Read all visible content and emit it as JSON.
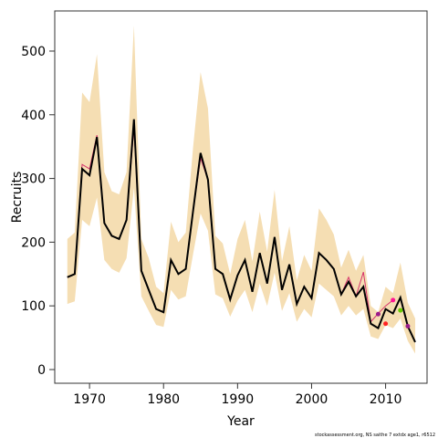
{
  "chart_data": {
    "type": "line",
    "xlabel": "Year",
    "ylabel": "Recruits",
    "footnote": "stockassessment.org, NS saithe 7 extdx age1, r6512",
    "x": [
      1967,
      1968,
      1969,
      1970,
      1971,
      1972,
      1973,
      1974,
      1975,
      1976,
      1977,
      1978,
      1979,
      1980,
      1981,
      1982,
      1983,
      1984,
      1985,
      1986,
      1987,
      1988,
      1989,
      1990,
      1991,
      1992,
      1993,
      1994,
      1995,
      1996,
      1997,
      1998,
      1999,
      2000,
      2001,
      2002,
      2003,
      2004,
      2005,
      2006,
      2007,
      2008,
      2009,
      2010,
      2011,
      2012,
      2013,
      2014
    ],
    "band": {
      "color": "#f5deb3",
      "upper": [
        205,
        215,
        435,
        420,
        495,
        310,
        280,
        275,
        310,
        540,
        205,
        175,
        130,
        120,
        232,
        200,
        215,
        350,
        467,
        410,
        210,
        198,
        150,
        205,
        235,
        170,
        248,
        185,
        282,
        170,
        225,
        140,
        180,
        155,
        253,
        235,
        212,
        160,
        188,
        155,
        180,
        100,
        90,
        130,
        120,
        168,
        105,
        80
      ],
      "lower": [
        103,
        107,
        235,
        225,
        270,
        172,
        158,
        152,
        175,
        285,
        115,
        92,
        70,
        67,
        125,
        110,
        115,
        182,
        245,
        218,
        118,
        112,
        83,
        108,
        125,
        90,
        135,
        100,
        152,
        92,
        120,
        75,
        95,
        82,
        135,
        125,
        115,
        85,
        100,
        85,
        95,
        52,
        48,
        70,
        65,
        80,
        45,
        25
      ]
    },
    "series": [
      {
        "color": "#d6336c",
        "width": 1,
        "values": [
          145,
          150,
          322,
          315,
          368,
          230,
          210,
          205,
          235,
          380,
          155,
          125,
          95,
          90,
          172,
          150,
          158,
          250,
          332,
          298,
          158,
          150,
          110,
          148,
          172,
          122,
          183,
          135,
          208,
          125,
          165,
          103,
          130,
          112,
          183,
          172,
          158,
          118,
          145,
          115,
          153,
          75,
          88,
          100,
          109,
          null,
          null,
          null
        ]
      },
      {
        "color": "#000000",
        "width": 2,
        "values": [
          145,
          150,
          315,
          305,
          365,
          230,
          210,
          205,
          235,
          393,
          155,
          125,
          95,
          90,
          172,
          150,
          158,
          250,
          340,
          298,
          158,
          150,
          110,
          148,
          172,
          122,
          183,
          135,
          208,
          125,
          165,
          103,
          130,
          112,
          183,
          172,
          158,
          118,
          138,
          115,
          130,
          72,
          65,
          95,
          88,
          113,
          68,
          43
        ]
      }
    ],
    "points": {
      "x": [
        2009,
        2010,
        2011,
        2012,
        2013
      ],
      "values": [
        87,
        72,
        109,
        93,
        68
      ],
      "colors": [
        "#9b1b8a",
        "#ff2222",
        "#ff1493",
        "#66cc00",
        "#9b1b8a"
      ]
    },
    "xlim": [
      1965.3,
      2015.6
    ],
    "ylim": [
      -21.5,
      563
    ],
    "xticks": [
      1970,
      1980,
      1990,
      2000,
      2010
    ],
    "yticks": [
      0,
      100,
      200,
      300,
      400,
      500
    ]
  }
}
